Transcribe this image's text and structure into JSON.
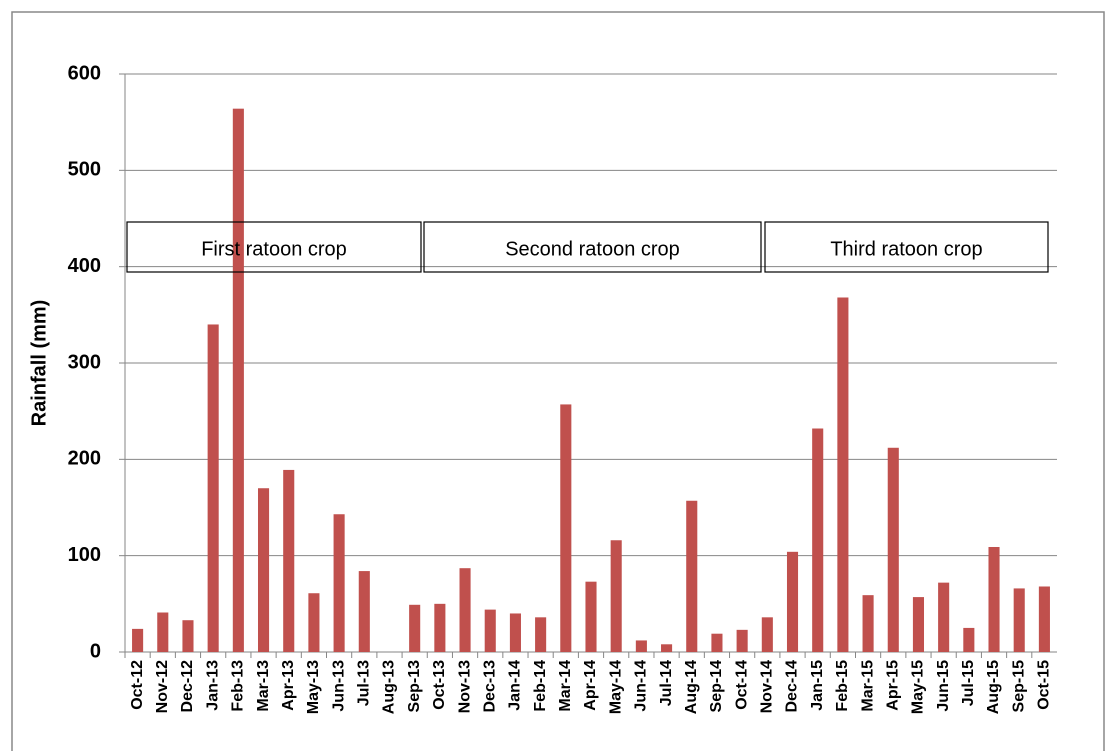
{
  "chart_data": {
    "type": "bar",
    "y_label": "Rainfall (mm)",
    "categories": [
      "Oct-12",
      "Nov-12",
      "Dec-12",
      "Jan-13",
      "Feb-13",
      "Mar-13",
      "Apr-13",
      "May-13",
      "Jun-13",
      "Jul-13",
      "Aug-13",
      "Sep-13",
      "Oct-13",
      "Nov-13",
      "Dec-13",
      "Jan-14",
      "Feb-14",
      "Mar-14",
      "Apr-14",
      "May-14",
      "Jun-14",
      "Jul-14",
      "Aug-14",
      "Sep-14",
      "Oct-14",
      "Nov-14",
      "Dec-14",
      "Jan-15",
      "Feb-15",
      "Mar-15",
      "Apr-15",
      "May-15",
      "Jun-15",
      "Jul-15",
      "Aug-15",
      "Sep-15",
      "Oct-15"
    ],
    "values": [
      24,
      41,
      33,
      340,
      564,
      170,
      189,
      61,
      143,
      84,
      0,
      49,
      50,
      87,
      44,
      40,
      36,
      257,
      73,
      116,
      12,
      8,
      157,
      19,
      23,
      36,
      104,
      232,
      368,
      59,
      212,
      57,
      72,
      25,
      109,
      66,
      68
    ],
    "color": "#c0504d",
    "ylim": [
      0,
      600
    ],
    "yticks": [
      0,
      100,
      200,
      300,
      400,
      500,
      600
    ],
    "grid": true,
    "annotations": [
      "First ratoon crop",
      "Second ratoon crop",
      "Third ratoon crop"
    ]
  }
}
